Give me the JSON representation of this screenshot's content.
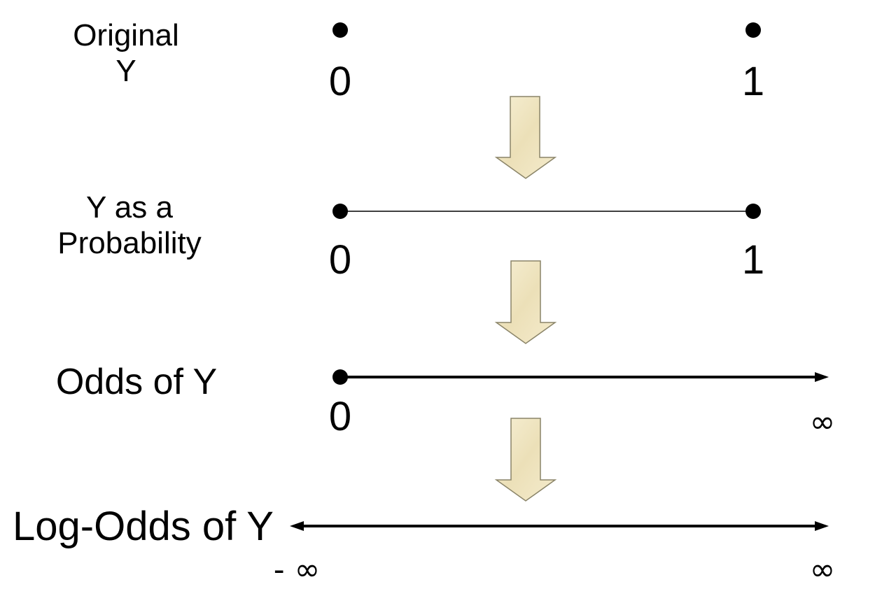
{
  "rows": {
    "original": {
      "label_line1": "Original",
      "label_line2": "Y",
      "tick_left": "0",
      "tick_right": "1"
    },
    "probability": {
      "label_line1": "Y as a",
      "label_line2": "Probability",
      "tick_left": "0",
      "tick_right": "1"
    },
    "odds": {
      "label": "Odds of Y",
      "tick_left": "0",
      "tick_right": "∞"
    },
    "log_odds": {
      "label": "Log-Odds of Y",
      "tick_left": "- ∞",
      "tick_right": "∞"
    }
  },
  "colors": {
    "arrow_fill": "#f2e8c6",
    "arrow_stroke": "#8a8468",
    "line": "#000000"
  },
  "icons": {
    "transform_arrow": "down-arrow-icon",
    "endpoint": "dot-icon",
    "line_end": "arrowhead-icon"
  }
}
